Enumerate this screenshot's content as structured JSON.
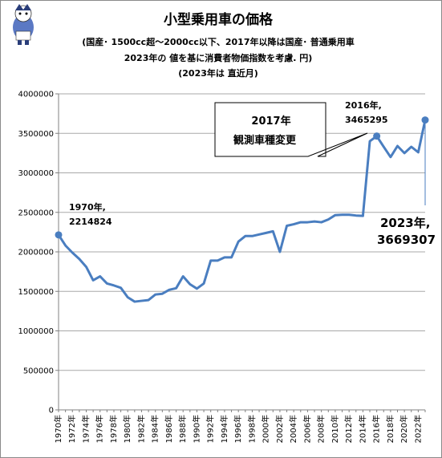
{
  "chart_data": {
    "type": "line",
    "title": "小型乗用車の価格",
    "subtitle": [
      "(国産･ 1500cc超～2000cc以下、2017年以降は国産･ 普通乗用車",
      "2023年の 値を基に消費者物価指数を考慮. 円)",
      "(2023年は 直近月)"
    ],
    "x": [
      1970,
      1971,
      1972,
      1973,
      1974,
      1975,
      1976,
      1977,
      1978,
      1979,
      1980,
      1981,
      1982,
      1983,
      1984,
      1985,
      1986,
      1987,
      1988,
      1989,
      1990,
      1991,
      1992,
      1993,
      1994,
      1995,
      1996,
      1997,
      1998,
      1999,
      2000,
      2001,
      2002,
      2003,
      2004,
      2005,
      2006,
      2007,
      2008,
      2009,
      2010,
      2011,
      2012,
      2013,
      2014,
      2015,
      2016,
      2017,
      2018,
      2019,
      2020,
      2021,
      2022,
      2023
    ],
    "series": [
      {
        "values": [
          2214824,
          2080000,
          1990000,
          1910000,
          1810000,
          1640000,
          1690000,
          1600000,
          1575000,
          1545000,
          1425000,
          1370000,
          1380000,
          1390000,
          1460000,
          1470000,
          1520000,
          1540000,
          1690000,
          1590000,
          1535000,
          1600000,
          1890000,
          1890000,
          1930000,
          1930000,
          2130000,
          2200000,
          2200000,
          2220000,
          2240000,
          2260000,
          2000000,
          2330000,
          2350000,
          2375000,
          2375000,
          2385000,
          2375000,
          2410000,
          2465000,
          2470000,
          2470000,
          2460000,
          2455000,
          3400000,
          3465295,
          3330000,
          3200000,
          3340000,
          3250000,
          3330000,
          3260000,
          3669307
        ]
      }
    ],
    "xtick_labels": [
      "1970年",
      "1972年",
      "1974年",
      "1976年",
      "1978年",
      "1980年",
      "1982年",
      "1984年",
      "1986年",
      "1988年",
      "1990年",
      "1992年",
      "1994年",
      "1996年",
      "1998年",
      "2000年",
      "2002年",
      "2004年",
      "2006年",
      "2008年",
      "2010年",
      "2012年",
      "2014年",
      "2016年",
      "2018年",
      "2020年",
      "2022年"
    ],
    "ytick_labels": [
      "0",
      "500000",
      "1000000",
      "1500000",
      "2000000",
      "2500000",
      "3000000",
      "3500000",
      "4000000"
    ],
    "ylim": [
      0,
      4000000
    ],
    "grid": "horizontal",
    "line_color": "#4a7ec0",
    "annotations": {
      "a1970_year": "1970年,",
      "a1970_value": "2214824",
      "a2016_year": "2016年,",
      "a2016_value": "3465295",
      "a2023_year": "2023年,",
      "a2023_value": "3669307",
      "callout_line1": "2017年",
      "callout_line2": "観測車種変更"
    },
    "mascot": "mascot-illustration"
  }
}
